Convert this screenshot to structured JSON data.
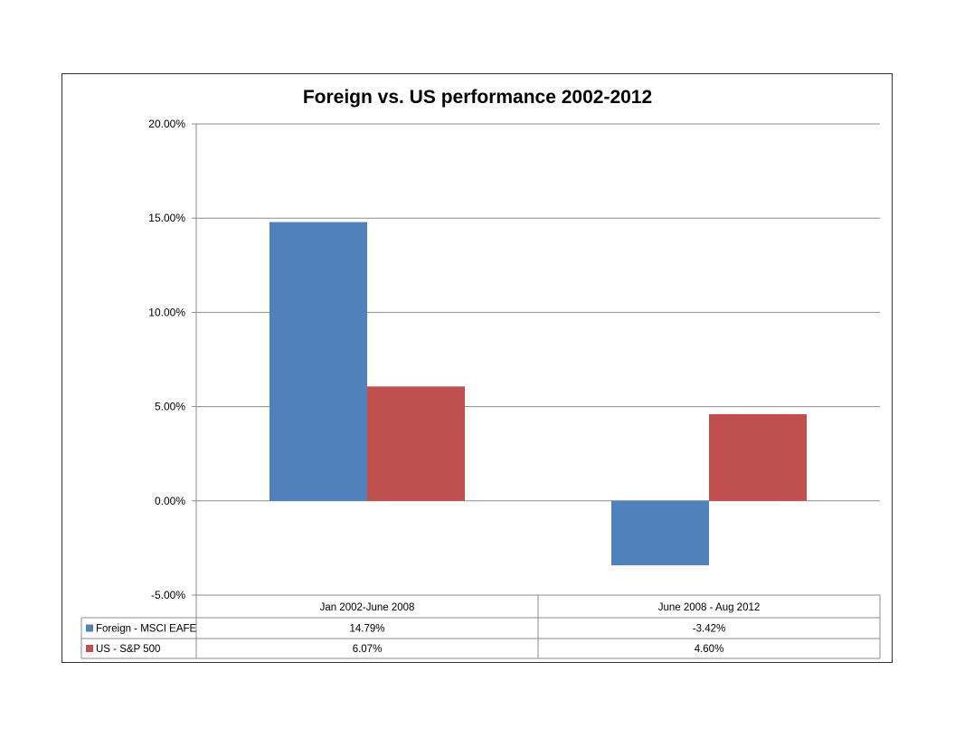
{
  "chart_data": {
    "type": "bar",
    "title": "Foreign vs. US performance 2002-2012",
    "categories": [
      "Jan 2002-June 2008",
      "June 2008 - Aug 2012"
    ],
    "series": [
      {
        "name": "Foreign - MSCI EAFE",
        "values": [
          14.79,
          -3.42
        ],
        "labels": [
          "14.79%",
          "-3.42%"
        ],
        "color": "#4F81BD"
      },
      {
        "name": "US - S&P 500",
        "values": [
          6.07,
          4.6
        ],
        "labels": [
          "6.07%",
          "4.60%"
        ],
        "color": "#C0504D"
      }
    ],
    "ylim": [
      -5,
      20
    ],
    "yticks": [
      20,
      15,
      10,
      5,
      0,
      -5
    ],
    "ytick_labels": [
      "20.00%",
      "15.00%",
      "10.00%",
      "5.00%",
      "0.00%",
      "-5.00%"
    ],
    "grid": true,
    "legend": "data-table",
    "data_table": true
  }
}
